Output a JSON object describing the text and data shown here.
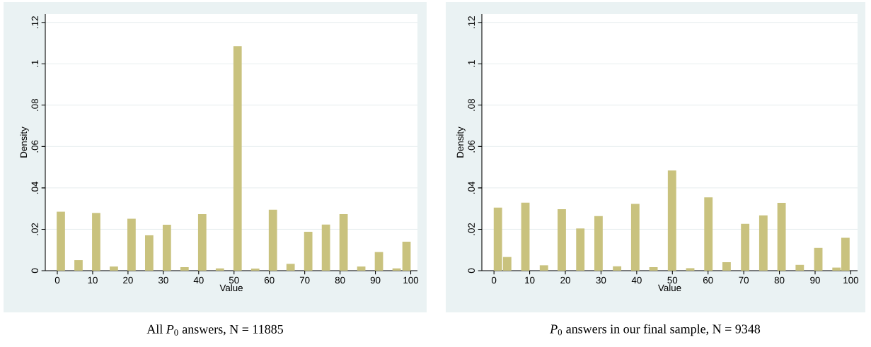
{
  "chart_data": [
    {
      "type": "bar",
      "title": "All *P*$_{0}$ answers, N = 11885",
      "xlabel": "Value",
      "ylabel": "Density",
      "color": "#c9c27e",
      "grid": "y",
      "x": [
        1,
        6,
        11,
        16,
        21,
        26,
        31,
        36,
        41,
        46,
        51,
        56,
        61,
        66,
        71,
        76,
        81,
        86,
        91,
        96,
        98.8
      ],
      "values": [
        0.0285,
        0.0051,
        0.0279,
        0.002,
        0.0251,
        0.0171,
        0.0222,
        0.0017,
        0.0273,
        0.0011,
        0.1085,
        0.001,
        0.0295,
        0.0033,
        0.0188,
        0.0223,
        0.0273,
        0.002,
        0.009,
        0.0011,
        0.014
      ],
      "xlim": [
        -3.4,
        101.9
      ],
      "ylim": [
        0,
        0.124
      ],
      "xticks": [
        0,
        10,
        20,
        30,
        40,
        50,
        60,
        70,
        80,
        90,
        100
      ],
      "yticks": [
        0,
        {
          "value": 0.02,
          "label": ".02"
        },
        {
          "value": 0.04,
          "label": ".04"
        },
        {
          "value": 0.06,
          "label": ".06"
        },
        {
          "value": 0.08,
          "label": ".08"
        },
        {
          "value": 0.1,
          "label": ".1"
        },
        {
          "value": 0.12,
          "label": ".12"
        }
      ]
    },
    {
      "type": "bar",
      "title": "*P*$_{0}$ answers in our final sample, N = 9348",
      "xlabel": "Value",
      "ylabel": "Density",
      "color": "#c9c27e",
      "grid": "y",
      "x": [
        1.1,
        3.7,
        8.8,
        14,
        19,
        24.2,
        29.3,
        34.5,
        39.6,
        44.7,
        49.9,
        55,
        60.1,
        65.2,
        70.4,
        75.5,
        80.6,
        85.7,
        90.9,
        96,
        98.5
      ],
      "values": [
        0.0305,
        0.0066,
        0.0329,
        0.0026,
        0.0297,
        0.0204,
        0.0264,
        0.0021,
        0.0323,
        0.0017,
        0.0484,
        0.0012,
        0.0354,
        0.0041,
        0.0226,
        0.0267,
        0.0328,
        0.0028,
        0.011,
        0.0015,
        0.0159
      ],
      "xlim": [
        -3.4,
        101.9
      ],
      "ylim": [
        0,
        0.124
      ],
      "xticks": [
        0,
        10,
        20,
        30,
        40,
        50,
        60,
        70,
        80,
        90,
        100
      ],
      "yticks": [
        0,
        {
          "value": 0.02,
          "label": ".02"
        },
        {
          "value": 0.04,
          "label": ".04"
        },
        {
          "value": 0.06,
          "label": ".06"
        },
        {
          "value": 0.08,
          "label": ".08"
        },
        {
          "value": 0.1,
          "label": ".1"
        },
        {
          "value": 0.12,
          "label": ".12"
        }
      ]
    }
  ]
}
